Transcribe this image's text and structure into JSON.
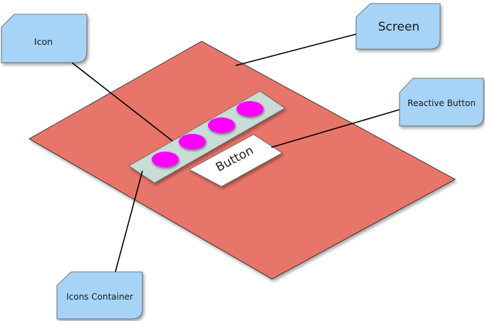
{
  "callouts": {
    "icon": "Icon",
    "screen": "Screen",
    "reactive_button": "Reactive Button",
    "icons_container": "Icons Container"
  },
  "button_label": "Button",
  "colors": {
    "screen": "#e8756a",
    "container": "#c9dcd6",
    "icon": "#ff00ff",
    "callout": "#a7d3f7",
    "button": "#ffffff"
  }
}
